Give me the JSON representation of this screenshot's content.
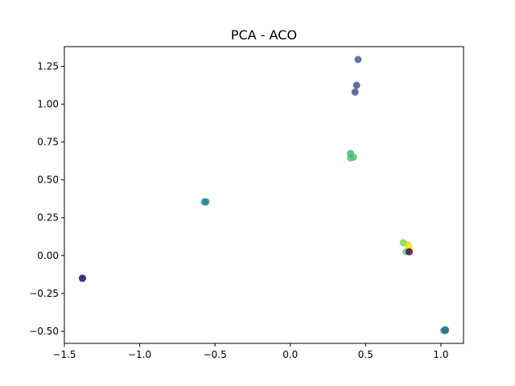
{
  "chart_data": {
    "type": "scatter",
    "title": "PCA - ACO",
    "xlabel": "",
    "ylabel": "",
    "xlim": [
      -1.5,
      1.15
    ],
    "ylim": [
      -0.58,
      1.38
    ],
    "xticks": [
      -1.5,
      -1.0,
      -0.5,
      0.0,
      0.5,
      1.0
    ],
    "xtick_labels": [
      "−1.5",
      "−1.0",
      "−0.5",
      "0.0",
      "0.5",
      "1.0"
    ],
    "yticks": [
      -0.5,
      -0.25,
      0.0,
      0.25,
      0.5,
      0.75,
      1.0,
      1.25
    ],
    "ytick_labels": [
      "−0.50",
      "−0.25",
      "0.00",
      "0.25",
      "0.50",
      "0.75",
      "1.00",
      "1.25"
    ],
    "grid": false,
    "marker_alpha": 0.8,
    "points": [
      {
        "x": -1.38,
        "y": -0.15,
        "color": "#440154"
      },
      {
        "x": -1.38,
        "y": -0.15,
        "color": "#46327e"
      },
      {
        "x": -1.38,
        "y": -0.15,
        "color": "#472d7b"
      },
      {
        "x": 0.45,
        "y": 1.295,
        "color": "#3b528b"
      },
      {
        "x": 0.44,
        "y": 1.125,
        "color": "#414487"
      },
      {
        "x": 0.43,
        "y": 1.08,
        "color": "#3e4a89"
      },
      {
        "x": -0.57,
        "y": 0.355,
        "color": "#21918c"
      },
      {
        "x": -0.56,
        "y": 0.355,
        "color": "#26828e"
      },
      {
        "x": 0.4,
        "y": 0.675,
        "color": "#35b779"
      },
      {
        "x": 0.4,
        "y": 0.645,
        "color": "#3fbc73"
      },
      {
        "x": 0.42,
        "y": 0.65,
        "color": "#4ac16d"
      },
      {
        "x": 0.75,
        "y": 0.085,
        "color": "#7ad151"
      },
      {
        "x": 0.78,
        "y": 0.07,
        "color": "#bddf26"
      },
      {
        "x": 0.79,
        "y": 0.055,
        "color": "#fde725"
      },
      {
        "x": 0.77,
        "y": 0.025,
        "color": "#5ec962"
      },
      {
        "x": 0.79,
        "y": 0.025,
        "color": "#440154"
      },
      {
        "x": 1.03,
        "y": -0.495,
        "color": "#31688e"
      },
      {
        "x": 1.02,
        "y": -0.495,
        "color": "#2c728e"
      },
      {
        "x": 1.03,
        "y": -0.49,
        "color": "#287c8e"
      }
    ]
  }
}
